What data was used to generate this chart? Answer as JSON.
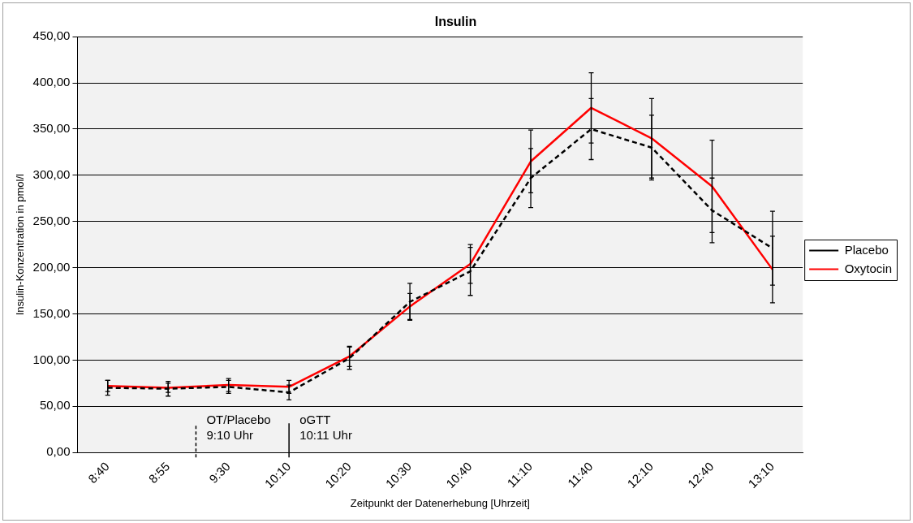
{
  "chart_data": {
    "type": "line",
    "title": "Insulin",
    "xlabel": "Zeitpunkt der Datenerhebung [Uhrzeit]",
    "ylabel": "Insulin-Konzentration in pmol/l",
    "categories": [
      "8:40",
      "8:55",
      "9:30",
      "10:10",
      "10:20",
      "10:30",
      "10:40",
      "11:10",
      "11:40",
      "12:10",
      "12:40",
      "13:10"
    ],
    "series": [
      {
        "name": "Placebo",
        "color": "#000000",
        "line_style": "dashed",
        "values": [
          70,
          69,
          71,
          65,
          102,
          163,
          196,
          297,
          350,
          330,
          262,
          221
        ],
        "errors": [
          8,
          8,
          7,
          8,
          12,
          20,
          26,
          32,
          33,
          35,
          35,
          40
        ]
      },
      {
        "name": "Oxytocin",
        "color": "#ff0000",
        "line_style": "solid",
        "values": [
          72,
          70,
          73,
          71,
          104,
          158,
          204,
          315,
          373,
          340,
          288,
          198
        ],
        "errors": [
          6,
          5,
          7,
          7,
          11,
          14,
          21,
          34,
          38,
          43,
          50,
          36
        ]
      }
    ],
    "ylim": [
      0,
      450
    ],
    "yticks": [
      {
        "value": 0,
        "label": "0,00"
      },
      {
        "value": 50,
        "label": "50,00"
      },
      {
        "value": 100,
        "label": "100,00"
      },
      {
        "value": 150,
        "label": "150,00"
      },
      {
        "value": 200,
        "label": "200,00"
      },
      {
        "value": 250,
        "label": "250,00"
      },
      {
        "value": 300,
        "label": "300,00"
      },
      {
        "value": 350,
        "label": "350,00"
      },
      {
        "value": 400,
        "label": "400,00"
      },
      {
        "value": 450,
        "label": "450,00"
      }
    ],
    "grid": "y",
    "legend": "right",
    "marker": "none",
    "annotations": [
      "OT/Placebo\n9:10 Uhr",
      "oGTT\n10:11 Uhr"
    ]
  }
}
